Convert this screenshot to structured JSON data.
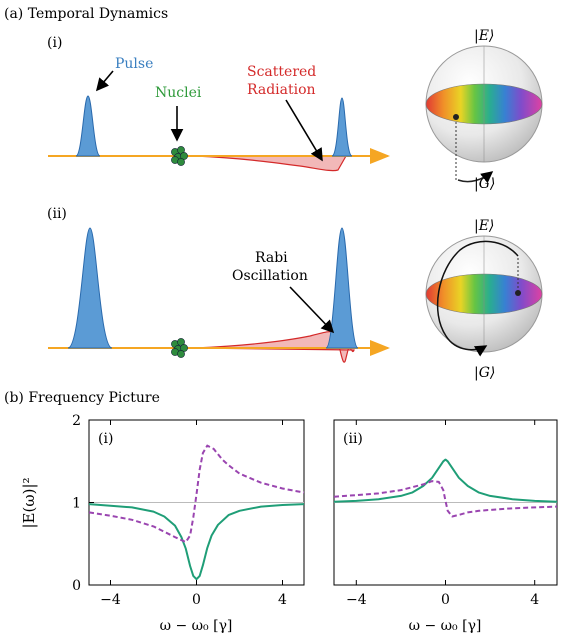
{
  "panel_a": {
    "title": "(a) Temporal Dynamics",
    "row_i_label": "(i)",
    "row_ii_label": "(ii)",
    "pulse_label": "Pulse",
    "nuclei_label": "Nuclei",
    "scattered_label_1": "Scattered",
    "scattered_label_2": "Radiation",
    "rabi_label_1": "Rabi",
    "rabi_label_2": "Oscillation",
    "sphere_top_label": "|E⟩",
    "sphere_bottom_label": "|G⟩"
  },
  "panel_b": {
    "title": "(b) Frequency Picture",
    "ylabel": "|E(ω)|²",
    "xlabel": "ω − ω₀ [γ]",
    "left_label": "(i)",
    "right_label": "(ii)"
  },
  "colors": {
    "pulse_fill": "#5b9bd5",
    "pulse_edge": "#2a6aad",
    "axis_arrow": "#f5a623",
    "scatter_fill": "#f2b8b8",
    "scatter_edge": "#d42a2a",
    "nuclei": "#2e8b3d",
    "pulse_text": "#3a7fc0",
    "nuclei_text": "#2e9a3a",
    "scatter_text": "#d42a2a",
    "solid_curve": "#1f9e77",
    "dashed_curve": "#9a45b0",
    "reference_line": "#bbbbbb"
  },
  "chart_data": [
    {
      "type": "line",
      "panel": "(i)",
      "xlim": [
        -5,
        5
      ],
      "ylim": [
        0,
        2
      ],
      "xticks": [
        -4,
        0,
        4
      ],
      "yticks": [
        0,
        1,
        2
      ],
      "reference_y": 1,
      "series": [
        {
          "style": "solid",
          "x": [
            -5,
            -4,
            -3,
            -2,
            -1.5,
            -1,
            -0.7,
            -0.5,
            -0.3,
            -0.15,
            0,
            0.15,
            0.3,
            0.5,
            0.7,
            1,
            1.5,
            2,
            3,
            4,
            5
          ],
          "values": [
            0.98,
            0.96,
            0.94,
            0.89,
            0.83,
            0.72,
            0.58,
            0.44,
            0.23,
            0.11,
            0.07,
            0.11,
            0.24,
            0.45,
            0.6,
            0.73,
            0.85,
            0.9,
            0.95,
            0.97,
            0.98
          ]
        },
        {
          "style": "dashed",
          "x": [
            -5,
            -4,
            -3,
            -2,
            -1,
            -0.5,
            -0.3,
            -0.15,
            0,
            0.15,
            0.3,
            0.5,
            0.8,
            1.2,
            1.5,
            2,
            3,
            4,
            5
          ],
          "values": [
            0.88,
            0.84,
            0.79,
            0.71,
            0.58,
            0.52,
            0.6,
            0.82,
            1.1,
            1.4,
            1.6,
            1.69,
            1.65,
            1.52,
            1.45,
            1.35,
            1.24,
            1.17,
            1.12
          ]
        }
      ]
    },
    {
      "type": "line",
      "panel": "(ii)",
      "xlim": [
        -5,
        5
      ],
      "ylim": [
        0,
        2
      ],
      "xticks": [
        -4,
        0,
        4
      ],
      "yticks": [],
      "reference_y": 1,
      "series": [
        {
          "style": "solid",
          "x": [
            -5,
            -4,
            -3,
            -2,
            -1.5,
            -1,
            -0.6,
            -0.3,
            -0.1,
            0,
            0.1,
            0.3,
            0.6,
            1,
            1.5,
            2,
            3,
            4,
            5
          ],
          "values": [
            1.01,
            1.02,
            1.04,
            1.08,
            1.12,
            1.2,
            1.3,
            1.42,
            1.5,
            1.52,
            1.5,
            1.42,
            1.3,
            1.2,
            1.12,
            1.08,
            1.04,
            1.02,
            1.01
          ]
        },
        {
          "style": "dashed",
          "x": [
            -5,
            -4,
            -3,
            -2,
            -1,
            -0.6,
            -0.3,
            -0.1,
            0,
            0.1,
            0.3,
            0.6,
            1,
            1.5,
            2,
            3,
            4,
            5
          ],
          "values": [
            1.07,
            1.09,
            1.11,
            1.15,
            1.22,
            1.26,
            1.25,
            1.15,
            1.02,
            0.9,
            0.83,
            0.85,
            0.88,
            0.9,
            0.91,
            0.93,
            0.94,
            0.95
          ]
        }
      ]
    }
  ]
}
